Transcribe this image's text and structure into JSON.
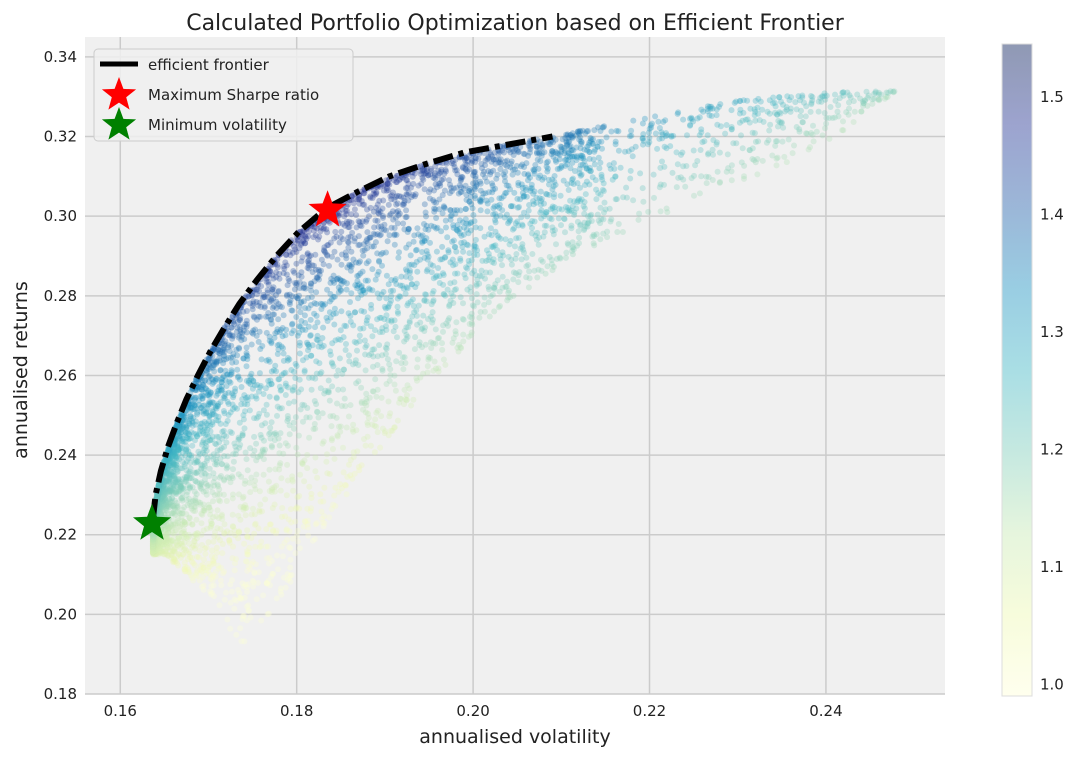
{
  "chart_data": {
    "type": "scatter",
    "title": "Calculated Portfolio Optimization based on Efficient Frontier",
    "xlabel": "annualised volatility",
    "ylabel": "annualised returns",
    "xlim": [
      0.156,
      0.2535
    ],
    "ylim": [
      0.18,
      0.345
    ],
    "xticks": [
      0.16,
      0.18,
      0.2,
      0.22,
      0.24
    ],
    "xtick_labels": [
      "0.16",
      "0.18",
      "0.20",
      "0.22",
      "0.24"
    ],
    "yticks": [
      0.18,
      0.2,
      0.22,
      0.24,
      0.26,
      0.28,
      0.3,
      0.32,
      0.34
    ],
    "ytick_labels": [
      "0.18",
      "0.20",
      "0.22",
      "0.24",
      "0.26",
      "0.28",
      "0.30",
      "0.32",
      "0.34"
    ],
    "grid": true,
    "legend_position": "top-left",
    "legend": [
      {
        "label": "efficient frontier",
        "marker": "dash-dot line",
        "color": "#000000"
      },
      {
        "label": "Maximum Sharpe ratio",
        "marker": "star",
        "color": "#ff0000"
      },
      {
        "label": "Minimum volatility",
        "marker": "star",
        "color": "#008000"
      }
    ],
    "colorbar": {
      "label": "",
      "range": [
        0.99,
        1.545
      ],
      "ticks": [
        1.0,
        1.1,
        1.2,
        1.3,
        1.4,
        1.5
      ],
      "tick_labels": [
        "1.0",
        "1.1",
        "1.2",
        "1.3",
        "1.4",
        "1.5"
      ],
      "colormap": "YlGnBu",
      "colors": [
        "#ffffd9",
        "#edf8b1",
        "#c7e9b4",
        "#7fcdbb",
        "#41b6c4",
        "#1d91c0",
        "#225ea8",
        "#253494",
        "#081d58"
      ]
    },
    "efficient_frontier": {
      "x": [
        0.1637,
        0.164,
        0.1646,
        0.1654,
        0.1664,
        0.1675,
        0.1688,
        0.1702,
        0.1718,
        0.1735,
        0.1755,
        0.1777,
        0.1802,
        0.1834,
        0.1868,
        0.1905,
        0.1945,
        0.199,
        0.204,
        0.209
      ],
      "y": [
        0.224,
        0.23,
        0.236,
        0.242,
        0.248,
        0.254,
        0.26,
        0.266,
        0.272,
        0.278,
        0.284,
        0.29,
        0.296,
        0.302,
        0.306,
        0.31,
        0.313,
        0.316,
        0.318,
        0.32
      ]
    },
    "max_sharpe": {
      "x": 0.1835,
      "y": 0.3015,
      "label": "Maximum Sharpe ratio",
      "color": "#ff0000"
    },
    "min_volatility": {
      "x": 0.1636,
      "y": 0.2228,
      "label": "Minimum volatility",
      "color": "#008000"
    },
    "random_portfolios": {
      "count": 5000,
      "note": "simulated portfolios colored by Sharpe ratio",
      "upper_bound": [
        [
          0.1637,
          0.224
        ],
        [
          0.1646,
          0.236
        ],
        [
          0.1664,
          0.248
        ],
        [
          0.1688,
          0.26
        ],
        [
          0.1718,
          0.272
        ],
        [
          0.1755,
          0.284
        ],
        [
          0.1802,
          0.296
        ],
        [
          0.1868,
          0.306
        ],
        [
          0.1945,
          0.313
        ],
        [
          0.204,
          0.318
        ],
        [
          0.209,
          0.32
        ],
        [
          0.218,
          0.324
        ],
        [
          0.23,
          0.329
        ],
        [
          0.24,
          0.331
        ],
        [
          0.248,
          0.3315
        ]
      ],
      "lower_bound": [
        [
          0.165,
          0.215
        ],
        [
          0.17,
          0.205
        ],
        [
          0.174,
          0.191
        ],
        [
          0.18,
          0.21
        ],
        [
          0.185,
          0.228
        ],
        [
          0.19,
          0.243
        ],
        [
          0.195,
          0.258
        ],
        [
          0.2,
          0.27
        ],
        [
          0.205,
          0.28
        ],
        [
          0.21,
          0.288
        ],
        [
          0.22,
          0.299
        ],
        [
          0.23,
          0.308
        ],
        [
          0.24,
          0.318
        ],
        [
          0.248,
          0.3315
        ]
      ]
    }
  }
}
